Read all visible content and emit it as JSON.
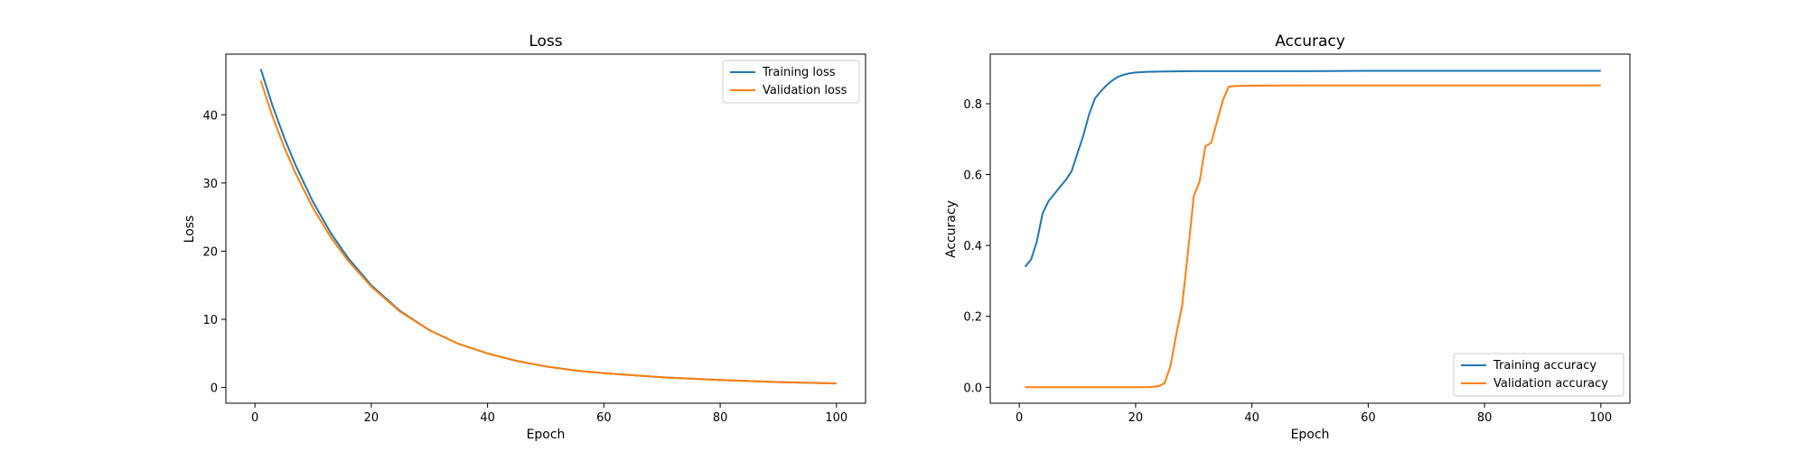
{
  "chart_data": [
    {
      "type": "line",
      "title": "Loss",
      "xlabel": "Epoch",
      "ylabel": "Loss",
      "xlim": [
        -5,
        105
      ],
      "ylim": [
        -2.3,
        48.9
      ],
      "xticks": [
        0,
        20,
        40,
        60,
        80,
        100
      ],
      "yticks": [
        0,
        10,
        20,
        30,
        40
      ],
      "grid": false,
      "legend": "upper right",
      "series": [
        {
          "name": "Training loss",
          "color": "#1f77b4",
          "x": [
            1,
            3,
            5,
            7,
            10,
            13,
            16,
            20,
            25,
            30,
            35,
            40,
            45,
            50,
            55,
            60,
            70,
            80,
            90,
            100
          ],
          "y": [
            46.7,
            41.4,
            36.7,
            32.6,
            27.2,
            22.7,
            19.0,
            15.0,
            11.2,
            8.4,
            6.4,
            5.0,
            3.9,
            3.1,
            2.5,
            2.1,
            1.5,
            1.1,
            0.8,
            0.6
          ]
        },
        {
          "name": "Validation loss",
          "color": "#ff7f0e",
          "x": [
            1,
            3,
            5,
            7,
            10,
            13,
            16,
            20,
            25,
            30,
            35,
            40,
            45,
            50,
            55,
            60,
            70,
            80,
            90,
            100
          ],
          "y": [
            45.0,
            39.8,
            35.3,
            31.4,
            26.3,
            22.1,
            18.6,
            14.8,
            11.1,
            8.4,
            6.4,
            5.0,
            3.9,
            3.1,
            2.5,
            2.1,
            1.5,
            1.1,
            0.8,
            0.6
          ]
        }
      ]
    },
    {
      "type": "line",
      "title": "Accuracy",
      "xlabel": "Epoch",
      "ylabel": "Accuracy",
      "xlim": [
        -5,
        105
      ],
      "ylim": [
        -0.045,
        0.94
      ],
      "xticks": [
        0,
        20,
        40,
        60,
        80,
        100
      ],
      "yticks": [
        0.0,
        0.2,
        0.4,
        0.6,
        0.8
      ],
      "grid": false,
      "legend": "lower right",
      "series": [
        {
          "name": "Training accuracy",
          "color": "#1f77b4",
          "x": [
            1,
            2,
            3,
            4,
            5,
            6,
            7,
            8,
            9,
            10,
            11,
            12,
            13,
            14,
            15,
            16,
            17,
            18,
            19,
            20,
            22,
            25,
            30,
            40,
            50,
            60,
            70,
            80,
            90,
            100
          ],
          "y": [
            0.34,
            0.36,
            0.41,
            0.49,
            0.525,
            0.545,
            0.565,
            0.585,
            0.61,
            0.66,
            0.71,
            0.77,
            0.815,
            0.835,
            0.852,
            0.866,
            0.876,
            0.882,
            0.886,
            0.888,
            0.89,
            0.891,
            0.892,
            0.892,
            0.892,
            0.893,
            0.893,
            0.893,
            0.893,
            0.893
          ]
        },
        {
          "name": "Validation accuracy",
          "color": "#ff7f0e",
          "x": [
            1,
            10,
            20,
            22,
            23,
            24,
            25,
            26,
            27,
            28,
            29,
            30,
            31,
            32,
            33,
            34,
            35,
            36,
            37,
            40,
            50,
            60,
            70,
            80,
            90,
            100
          ],
          "y": [
            0.0,
            0.0,
            0.0,
            0.0,
            0.001,
            0.003,
            0.012,
            0.06,
            0.15,
            0.23,
            0.38,
            0.54,
            0.58,
            0.68,
            0.69,
            0.75,
            0.81,
            0.848,
            0.85,
            0.851,
            0.852,
            0.852,
            0.852,
            0.852,
            0.852,
            0.852
          ]
        }
      ]
    }
  ]
}
